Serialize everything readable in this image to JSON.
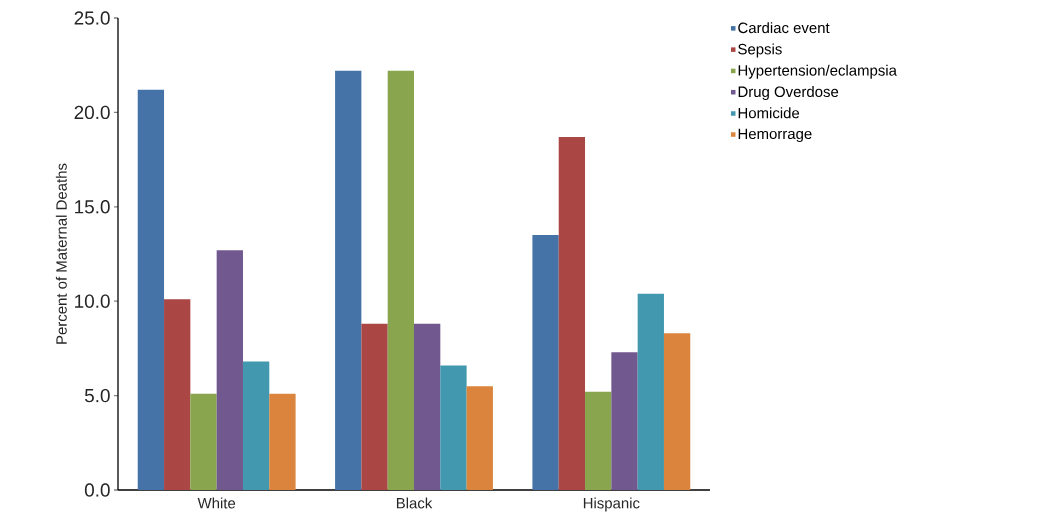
{
  "chart_data": {
    "type": "bar",
    "ylabel": "Percent of Maternal Deaths",
    "categories": [
      "White",
      "Black",
      "Hispanic"
    ],
    "series": [
      {
        "name": "Cardiac event",
        "color": "#4573a7",
        "values": [
          21.2,
          22.2,
          13.5
        ]
      },
      {
        "name": "Sepsis",
        "color": "#aa4644",
        "values": [
          10.1,
          8.8,
          18.7
        ]
      },
      {
        "name": "Hypertension/eclampsia",
        "color": "#89a54e",
        "values": [
          5.1,
          22.2,
          5.2
        ]
      },
      {
        "name": "Drug Overdose",
        "color": "#71588f",
        "values": [
          12.7,
          8.8,
          7.3
        ]
      },
      {
        "name": "Homicide",
        "color": "#4198af",
        "values": [
          6.8,
          6.6,
          10.4
        ]
      },
      {
        "name": "Hemorrage",
        "color": "#db843d",
        "values": [
          5.1,
          5.5,
          8.3
        ]
      }
    ],
    "ylim": [
      0,
      25
    ],
    "yticks": [
      {
        "value": 0,
        "label": "0.0"
      },
      {
        "value": 5,
        "label": "5.0"
      },
      {
        "value": 10,
        "label": "10.0"
      },
      {
        "value": 15,
        "label": "15.0"
      },
      {
        "value": 20,
        "label": "20.0"
      },
      {
        "value": 25,
        "label": "25.0"
      }
    ],
    "legend": "top right",
    "grid": false
  }
}
